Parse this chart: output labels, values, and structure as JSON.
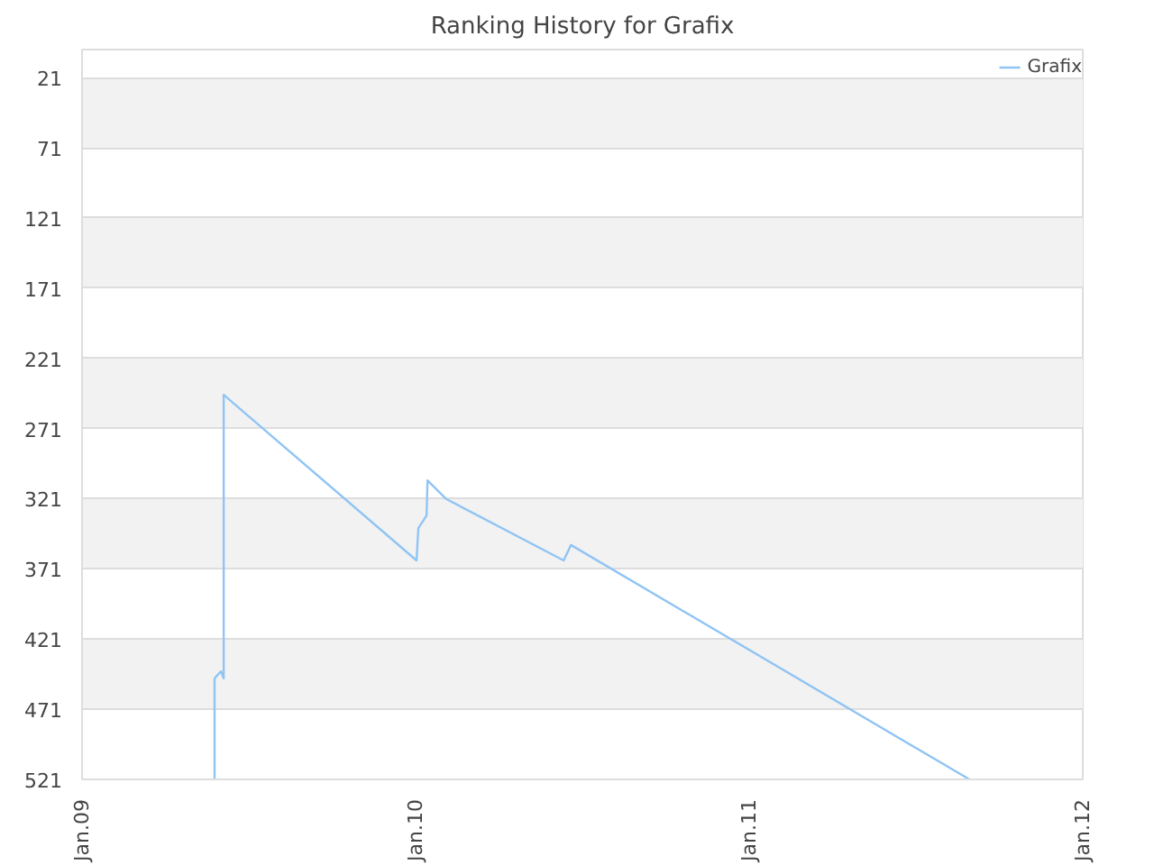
{
  "chart_data": {
    "type": "line",
    "title": "Ranking History for Grafix",
    "series": [
      {
        "name": "Grafix",
        "color": "#90c4f4",
        "x": [
          "2009-05-26",
          "2009-05-26",
          "2009-06-02",
          "2009-06-05",
          "2009-06-05",
          "2010-01-02",
          "2010-01-04",
          "2010-01-13",
          "2010-01-14",
          "2010-02-03",
          "2010-06-12",
          "2010-06-20",
          "2011-08-30"
        ],
        "values": [
          521,
          449,
          444,
          449,
          247,
          365,
          342,
          333,
          308,
          321,
          365,
          354,
          521
        ]
      }
    ],
    "xlim": [
      "2009-01-01",
      "2012-01-01"
    ],
    "xticks": [
      {
        "value": "2009-01-01",
        "label": "Jan.09"
      },
      {
        "value": "2010-01-01",
        "label": "Jan.10"
      },
      {
        "value": "2011-01-01",
        "label": "Jan.11"
      },
      {
        "value": "2012-01-01",
        "label": "Jan.12"
      }
    ],
    "ylim": [
      521,
      1
    ],
    "yticks": [
      21,
      71,
      121,
      171,
      221,
      271,
      321,
      371,
      421,
      471,
      521
    ],
    "grid": "y",
    "legend": "top right",
    "marker": "none",
    "line_style": "solid"
  }
}
